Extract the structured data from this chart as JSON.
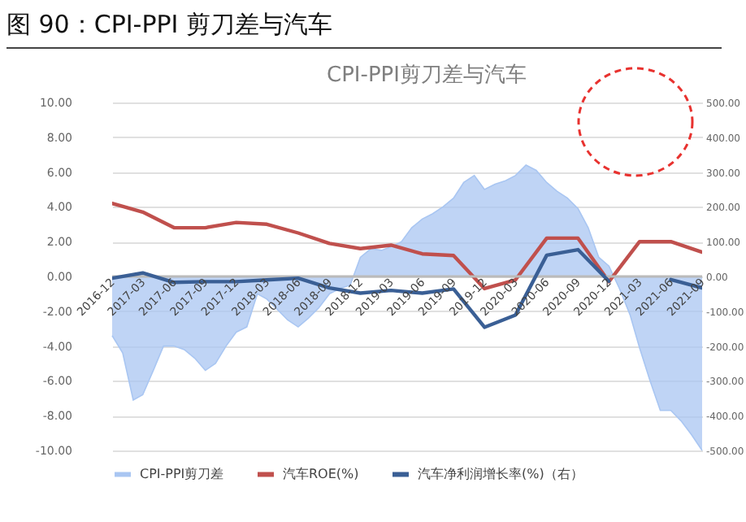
{
  "chart_data": {
    "type": "line",
    "title": "图 90：CPI-PPI 剪刀差与汽车",
    "subtitle": "CPI-PPI剪刀差与汽车",
    "xlim": [
      "2016-12",
      "2021-09"
    ],
    "xticks": [
      "2016-12",
      "2017-03",
      "2017-06",
      "2017-09",
      "2017-12",
      "2018-03",
      "2018-06",
      "2018-09",
      "2018-12",
      "2019-03",
      "2019-06",
      "2019-09",
      "2019-12",
      "2020-03",
      "2020-06",
      "2020-09",
      "2020-12",
      "2021-03",
      "2021-06",
      "2021-09"
    ],
    "ylim": [
      -10,
      10
    ],
    "yticks": [
      {
        "value": -10,
        "label": "-10.00"
      },
      {
        "value": -8,
        "label": "-8.00"
      },
      {
        "value": -6,
        "label": "-6.00"
      },
      {
        "value": -4,
        "label": "-4.00"
      },
      {
        "value": -2,
        "label": "-2.00"
      },
      {
        "value": 0,
        "label": "0.00"
      },
      {
        "value": 2,
        "label": "2.00"
      },
      {
        "value": 4,
        "label": "4.00"
      },
      {
        "value": 6,
        "label": "6.00"
      },
      {
        "value": 8,
        "label": "8.00"
      },
      {
        "value": 10,
        "label": "10.00"
      }
    ],
    "y2lim": [
      -500,
      500
    ],
    "y2ticks": [
      {
        "value": -500,
        "label": "-500.00"
      },
      {
        "value": -400,
        "label": "-400.00"
      },
      {
        "value": -300,
        "label": "-300.00"
      },
      {
        "value": -200,
        "label": "-200.00"
      },
      {
        "value": -100,
        "label": "-100.00"
      },
      {
        "value": 0,
        "label": "0.00"
      },
      {
        "value": 100,
        "label": "100.00"
      },
      {
        "value": 200,
        "label": "200.00"
      },
      {
        "value": 300,
        "label": "300.00"
      },
      {
        "value": 400,
        "label": "400.00"
      },
      {
        "value": 500,
        "label": "500.00"
      }
    ],
    "grid": "y",
    "legend": "bottom",
    "series": [
      {
        "name": "CPI-PPI剪刀差",
        "type": "area",
        "color": "#a9c6f2",
        "x": [
          "2016-12",
          "2017-01",
          "2017-02",
          "2017-03",
          "2017-04",
          "2017-05",
          "2017-06",
          "2017-07",
          "2017-08",
          "2017-09",
          "2017-10",
          "2017-11",
          "2017-12",
          "2018-01",
          "2018-02",
          "2018-03",
          "2018-04",
          "2018-05",
          "2018-06",
          "2018-07",
          "2018-08",
          "2018-09",
          "2018-10",
          "2018-11",
          "2018-12",
          "2019-01",
          "2019-02",
          "2019-03",
          "2019-04",
          "2019-05",
          "2019-06",
          "2019-07",
          "2019-08",
          "2019-09",
          "2019-10",
          "2019-11",
          "2019-12",
          "2020-01",
          "2020-02",
          "2020-03",
          "2020-04",
          "2020-05",
          "2020-06",
          "2020-07",
          "2020-08",
          "2020-09",
          "2020-10",
          "2020-11",
          "2020-12",
          "2021-01",
          "2021-02",
          "2021-03",
          "2021-04",
          "2021-05",
          "2021-06",
          "2021-07",
          "2021-08",
          "2021-09"
        ],
        "values": [
          -3.4,
          -4.4,
          -7.1,
          -6.8,
          -5.4,
          -4.0,
          -4.0,
          -4.2,
          -4.7,
          -5.4,
          -5.0,
          -4.0,
          -3.2,
          -2.9,
          -1.0,
          -1.3,
          -1.9,
          -2.5,
          -2.9,
          -2.4,
          -1.8,
          -1.0,
          -0.7,
          -0.5,
          1.1,
          1.6,
          1.5,
          1.7,
          2.0,
          2.8,
          3.3,
          3.6,
          4.0,
          4.5,
          5.4,
          5.8,
          5.0,
          5.3,
          5.5,
          5.8,
          6.4,
          6.1,
          5.4,
          4.9,
          4.5,
          3.9,
          2.8,
          1.1,
          0.6,
          -0.7,
          -2.2,
          -4.1,
          -6.0,
          -7.7,
          -7.7,
          -8.3,
          -9.1,
          -10.0
        ]
      },
      {
        "name": "汽车ROE(%)",
        "type": "line",
        "color": "#c0504d",
        "x": [
          "2016-12",
          "2017-03",
          "2017-06",
          "2017-09",
          "2017-12",
          "2018-03",
          "2018-06",
          "2018-09",
          "2018-12",
          "2019-03",
          "2019-06",
          "2019-09",
          "2019-12",
          "2020-03",
          "2020-06",
          "2020-09",
          "2020-12",
          "2021-03",
          "2021-06",
          "2021-09"
        ],
        "values": [
          4.2,
          3.7,
          2.8,
          2.8,
          3.1,
          3.0,
          2.5,
          1.9,
          1.6,
          1.8,
          1.3,
          1.2,
          -0.7,
          -0.2,
          2.2,
          2.2,
          -0.3,
          2.0,
          2.0,
          1.4
        ]
      },
      {
        "name": "汽车净利润增长率(%)（右）",
        "type": "line",
        "axis": "y2",
        "color": "#3a5f95",
        "x": [
          "2016-12",
          "2017-03",
          "2017-06",
          "2017-09",
          "2017-12",
          "2018-03",
          "2018-06",
          "2018-09",
          "2018-12",
          "2019-03",
          "2019-06",
          "2019-09",
          "2019-12",
          "2020-03",
          "2020-06",
          "2020-09",
          "2020-12",
          "2021-03",
          "2021-06",
          "2021-09"
        ],
        "values": [
          -5,
          10,
          -17,
          -15,
          -15,
          -10,
          -5,
          -33,
          -48,
          -40,
          -48,
          -36,
          -146,
          -111,
          61,
          77,
          -14,
          null,
          -9,
          -33
        ]
      }
    ]
  }
}
